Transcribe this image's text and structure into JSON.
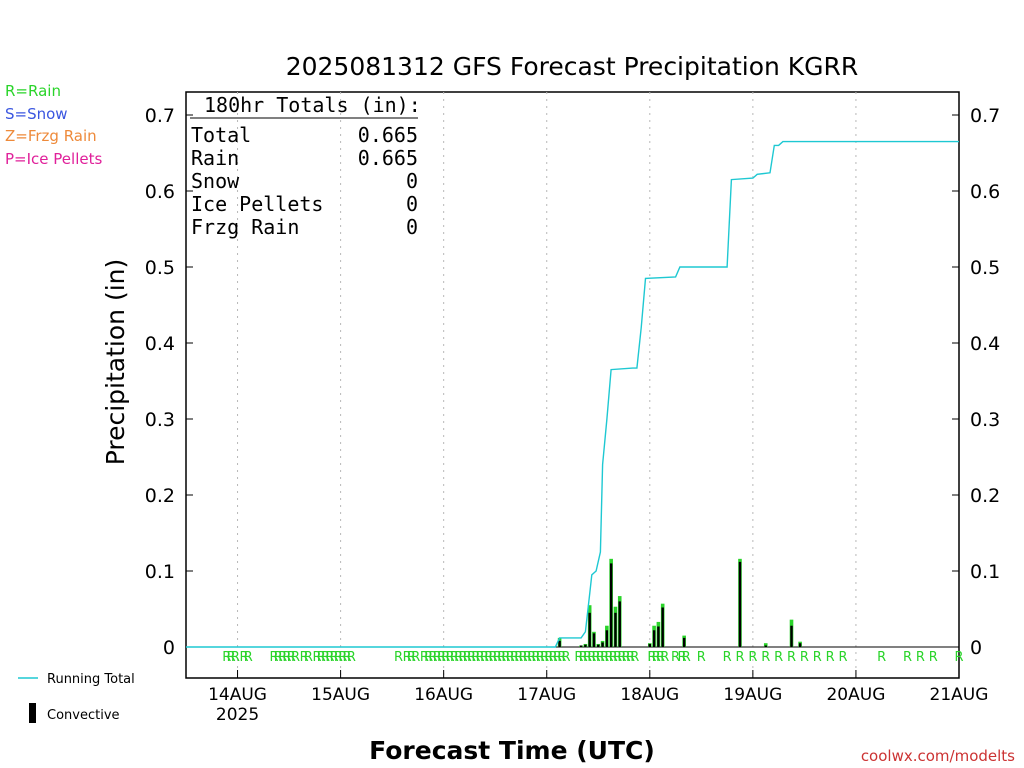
{
  "chart_data": {
    "type": "bar",
    "title": "2025081312 GFS Forecast Precipitation KGRR",
    "xlabel": "Forecast Time (UTC)",
    "ylabel": "Precipitation (in)",
    "ylim": [
      0,
      0.73
    ],
    "yticks": [
      0,
      0.1,
      0.2,
      0.3,
      0.4,
      0.5,
      0.6,
      0.7
    ],
    "ytick_labels": [
      "0",
      "0.1",
      "0.2",
      "0.3",
      "0.4",
      "0.5",
      "0.6",
      "0.7"
    ],
    "x_hours_range": [
      -12,
      168
    ],
    "x_day_ticks": [
      {
        "hour": 0,
        "label": "14AUG",
        "sublabel": "2025"
      },
      {
        "hour": 24,
        "label": "15AUG",
        "sublabel": ""
      },
      {
        "hour": 48,
        "label": "16AUG",
        "sublabel": ""
      },
      {
        "hour": 72,
        "label": "17AUG",
        "sublabel": ""
      },
      {
        "hour": 96,
        "label": "18AUG",
        "sublabel": ""
      },
      {
        "hour": 120,
        "label": "19AUG",
        "sublabel": ""
      },
      {
        "hour": 144,
        "label": "20AUG",
        "sublabel": ""
      },
      {
        "hour": 168,
        "label": "21AUG",
        "sublabel": ""
      }
    ],
    "grid": "dotted vertical at day boundaries",
    "series": [
      {
        "name": "Running Total",
        "kind": "line",
        "color": "#1ec8d2",
        "points": [
          [
            -12,
            0
          ],
          [
            74,
            0
          ],
          [
            75,
            0.012
          ],
          [
            80,
            0.012
          ],
          [
            81,
            0.02
          ],
          [
            82,
            0.07
          ],
          [
            82.5,
            0.095
          ],
          [
            83.5,
            0.1
          ],
          [
            84.5,
            0.125
          ],
          [
            85,
            0.24
          ],
          [
            86,
            0.3
          ],
          [
            87,
            0.365
          ],
          [
            92,
            0.367
          ],
          [
            93,
            0.367
          ],
          [
            94,
            0.42
          ],
          [
            95,
            0.485
          ],
          [
            102,
            0.487
          ],
          [
            103,
            0.5
          ],
          [
            114,
            0.5
          ],
          [
            115,
            0.615
          ],
          [
            120,
            0.617
          ],
          [
            121,
            0.622
          ],
          [
            124,
            0.624
          ],
          [
            125,
            0.66
          ],
          [
            126,
            0.66
          ],
          [
            127,
            0.665
          ],
          [
            168,
            0.665
          ]
        ]
      },
      {
        "name": "Convective",
        "kind": "bar",
        "color": "#000000",
        "bars": [
          [
            75,
            0.012,
            0.008
          ],
          [
            80,
            0.002,
            0.002
          ],
          [
            81,
            0.004,
            0.003
          ],
          [
            82,
            0.055,
            0.045
          ],
          [
            83,
            0.02,
            0.018
          ],
          [
            84,
            0.004,
            0.003
          ],
          [
            85,
            0.008,
            0.006
          ],
          [
            86,
            0.028,
            0.022
          ],
          [
            87,
            0.116,
            0.11
          ],
          [
            88,
            0.053,
            0.045
          ],
          [
            89,
            0.067,
            0.06
          ],
          [
            96,
            0.005,
            0.004
          ],
          [
            97,
            0.028,
            0.022
          ],
          [
            98,
            0.033,
            0.027
          ],
          [
            99,
            0.057,
            0.052
          ],
          [
            104,
            0.015,
            0.012
          ],
          [
            117,
            0.116,
            0.112
          ],
          [
            123,
            0.005,
            0.002
          ],
          [
            129,
            0.036,
            0.028
          ],
          [
            131,
            0.007,
            0.005
          ]
        ]
      }
    ],
    "precip_type_markers": {
      "label": "R",
      "color": "#2ad42a",
      "hours": [
        -2.5,
        -1.5,
        -0.5,
        1.5,
        2.5,
        8.5,
        9.5,
        10.5,
        11.5,
        12.5,
        13.5,
        15.5,
        16.5,
        18.5,
        19.5,
        20.5,
        21.5,
        22.5,
        23.5,
        24.5,
        25.5,
        26.5,
        37.5,
        39.5,
        40.5,
        41.5,
        43.5,
        44.5,
        45.5,
        46.5,
        47.5,
        48.5,
        49.5,
        50.5,
        51.5,
        52.5,
        53.5,
        54.5,
        55.5,
        56.5,
        57.5,
        58.5,
        59.5,
        60.5,
        61.5,
        62.5,
        63.5,
        64.5,
        65.5,
        66.5,
        67.5,
        68.5,
        69.5,
        70.5,
        71.5,
        72.5,
        73.5,
        74.5,
        75.5,
        76.5,
        79.5,
        80.5,
        81.5,
        82.5,
        83.5,
        84.5,
        85.5,
        86.5,
        87.5,
        88.5,
        89.5,
        90.5,
        91.5,
        92.5,
        96.5,
        97.5,
        98.5,
        99.5,
        102,
        103.5,
        104.5,
        108,
        114,
        117,
        120,
        123,
        126,
        129,
        132,
        135,
        138,
        141,
        150,
        156,
        159,
        162,
        168
      ]
    }
  },
  "header": {
    "title": "2025081312 GFS Forecast Precipitation KGRR"
  },
  "legend_types": [
    {
      "text": "R=Rain",
      "color": "#2ad42a"
    },
    {
      "text": "S=Snow",
      "color": "#3a56e0"
    },
    {
      "text": "Z=Frzg Rain",
      "color": "#ee8a3a"
    },
    {
      "text": "P=Ice Pellets",
      "color": "#e0209a"
    }
  ],
  "legend_bottom": {
    "running_total": "Running Total",
    "convective": "Convective"
  },
  "totals_box": {
    "heading": "180hr Totals (in):",
    "rows": [
      {
        "label": "Total",
        "value": "0.665"
      },
      {
        "label": "Rain",
        "value": "0.665"
      },
      {
        "label": "Snow",
        "value": "0"
      },
      {
        "label": "Ice Pellets",
        "value": "0"
      },
      {
        "label": "Frzg Rain",
        "value": "0"
      }
    ]
  },
  "footer": {
    "credit": "coolwx.com/modelts",
    "credit_color": "#cc3333"
  },
  "colors": {
    "rain_bar": "#2ad42a",
    "line": "#1ec8d2",
    "grid": "#b8b8b8",
    "axis": "#000000"
  }
}
